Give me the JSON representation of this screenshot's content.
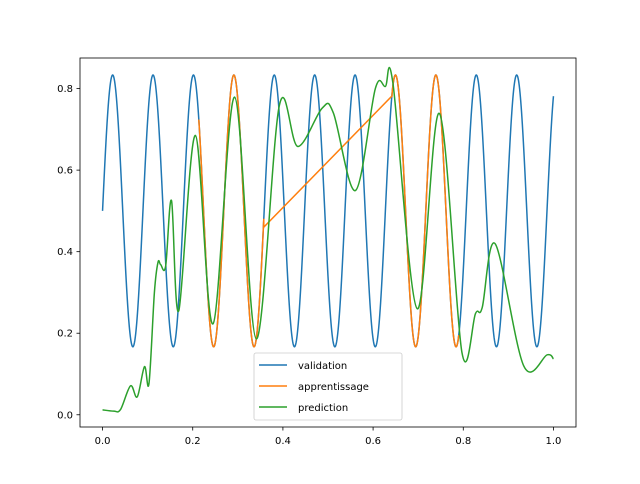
{
  "chart_data": {
    "type": "line",
    "title": "",
    "xlabel": "",
    "ylabel": "",
    "xlim": [
      -0.05,
      1.05
    ],
    "ylim": [
      -0.03,
      0.875
    ],
    "xticks": [
      "0.0",
      "0.2",
      "0.4",
      "0.6",
      "0.8",
      "1.0"
    ],
    "yticks": [
      "0.0",
      "0.2",
      "0.4",
      "0.6",
      "0.8"
    ],
    "grid": false,
    "legend_position": "lower-center",
    "series": [
      {
        "name": "validation",
        "color": "#1f77b4",
        "model": {
          "offset": 0.5,
          "amplitude": 0.3333,
          "frequency": 11.16,
          "x_range": [
            0.0,
            1.0
          ]
        }
      },
      {
        "name": "apprentissage",
        "color": "#ff7f0e",
        "segments": [
          {
            "follows": "validation",
            "x_range": [
              0.2135,
              0.3576
            ]
          },
          {
            "points": [
              [
                0.3576,
                0.46
              ],
              [
                0.642,
                0.782
              ]
            ]
          },
          {
            "follows": "validation",
            "x_range": [
              0.642,
              0.79
            ]
          }
        ]
      },
      {
        "name": "prediction",
        "color": "#2ca02c",
        "points": [
          [
            0.0,
            0.012
          ],
          [
            0.025,
            0.009
          ],
          [
            0.04,
            0.013
          ],
          [
            0.062,
            0.071
          ],
          [
            0.077,
            0.044
          ],
          [
            0.093,
            0.118
          ],
          [
            0.103,
            0.077
          ],
          [
            0.115,
            0.3
          ],
          [
            0.123,
            0.374
          ],
          [
            0.129,
            0.368
          ],
          [
            0.14,
            0.365
          ],
          [
            0.153,
            0.525
          ],
          [
            0.169,
            0.255
          ],
          [
            0.206,
            0.685
          ],
          [
            0.245,
            0.223
          ],
          [
            0.293,
            0.779
          ],
          [
            0.341,
            0.186
          ],
          [
            0.392,
            0.758
          ],
          [
            0.433,
            0.658
          ],
          [
            0.487,
            0.752
          ],
          [
            0.512,
            0.74
          ],
          [
            0.561,
            0.55
          ],
          [
            0.605,
            0.8
          ],
          [
            0.627,
            0.805
          ],
          [
            0.644,
            0.813
          ],
          [
            0.698,
            0.26
          ],
          [
            0.747,
            0.739
          ],
          [
            0.797,
            0.153
          ],
          [
            0.827,
            0.248
          ],
          [
            0.842,
            0.263
          ],
          [
            0.871,
            0.419
          ],
          [
            0.934,
            0.12
          ],
          [
            0.986,
            0.147
          ],
          [
            1.0,
            0.137
          ]
        ]
      }
    ]
  }
}
